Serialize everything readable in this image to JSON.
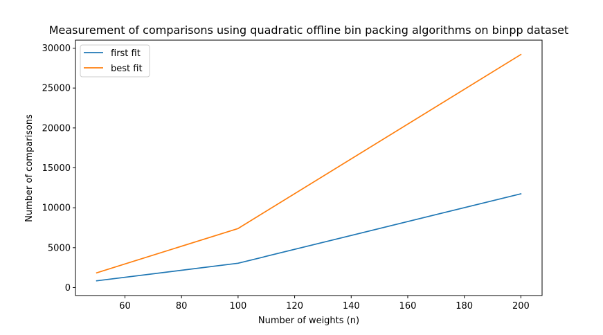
{
  "chart_data": {
    "type": "line",
    "title": "Measurement of comparisons using quadratic offline bin packing algorithms on binpp dataset",
    "xlabel": "Number of weights (n)",
    "ylabel": "Number of comparisons",
    "x": [
      50,
      100,
      200
    ],
    "series": [
      {
        "name": "first fit",
        "values": [
          850,
          3050,
          11750
        ],
        "color": "#1f77b4"
      },
      {
        "name": "best fit",
        "values": [
          1850,
          7400,
          29200
        ],
        "color": "#ff7f0e"
      }
    ],
    "xlim": [
      42.5,
      207.5
    ],
    "ylim": [
      -1000,
      31000
    ],
    "xticks": [
      60,
      80,
      100,
      120,
      140,
      160,
      180,
      200
    ],
    "yticks": [
      0,
      5000,
      10000,
      15000,
      20000,
      25000,
      30000
    ],
    "grid": false,
    "legend_position": "top-left"
  }
}
